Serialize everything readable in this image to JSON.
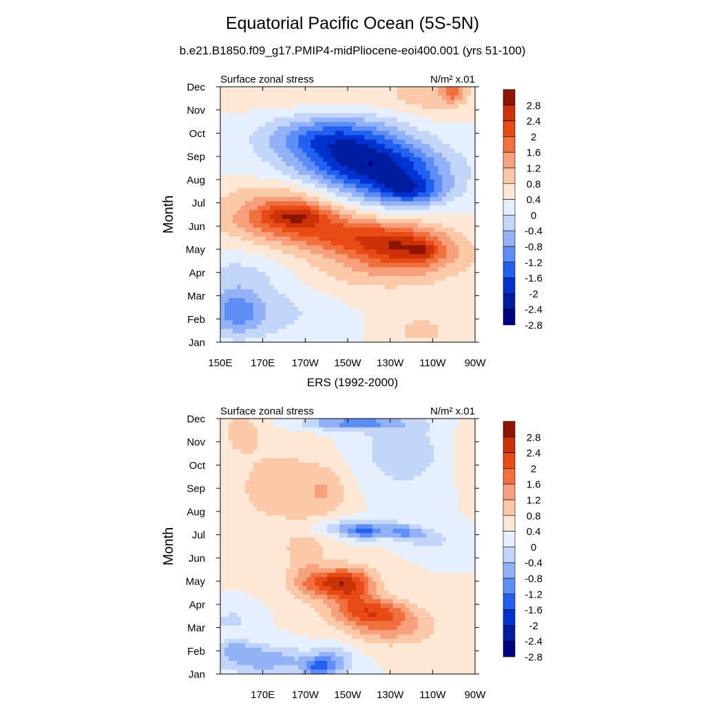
{
  "figure": {
    "title": "Equatorial Pacific Ocean (5S-5N)",
    "subtitle": "b.e21.B1850.f09_g17.PMIP4-midPliocene-eoi400.001 (yrs 51-100)",
    "obs_title": "ERS (1992-2000)"
  },
  "chart_data": [
    {
      "type": "heatmap",
      "name": "model",
      "left_label": "Surface zonal stress",
      "right_label": "N/m² x.01",
      "ylabel": "Month",
      "months": [
        "Jan",
        "Feb",
        "Mar",
        "Apr",
        "May",
        "Jun",
        "Jul",
        "Aug",
        "Sep",
        "Oct",
        "Nov",
        "Dec"
      ],
      "x_ticks": [
        "150E",
        "170E",
        "170W",
        "150W",
        "130W",
        "110W",
        "90W"
      ],
      "xlim_deg_east": [
        150,
        270
      ],
      "levels": [
        -2.8,
        -2.4,
        -2,
        -1.6,
        -1.2,
        -0.8,
        -0.4,
        0,
        0.4,
        0.8,
        1.2,
        1.6,
        2,
        2.4,
        2.8
      ],
      "colorbar_labels": [
        "2.8",
        "2.4",
        "2",
        "1.6",
        "1.2",
        "0.8",
        "0.4",
        "0",
        "-0.4",
        "-0.8",
        "-1.2",
        "-1.6",
        "-2",
        "-2.4",
        "-2.8"
      ],
      "colors": [
        "#000080",
        "#001CA0",
        "#0032D2",
        "#2260F0",
        "#5E8EF5",
        "#93B1F6",
        "#C3D5F8",
        "#E6F0FC",
        "#FDE8D7",
        "#FBC8A8",
        "#F7A07E",
        "#F0703F",
        "#E84B16",
        "#CC3208",
        "#8E1404"
      ],
      "features": [
        {
          "lon": 157,
          "month": 1.3,
          "value": -1.25,
          "lon_radius": 13,
          "month_radius": 1.0
        },
        {
          "lon": 177,
          "month": 1.3,
          "value": -0.5,
          "lon_radius": 25,
          "month_radius": 1.3
        },
        {
          "lon": 245,
          "month": 0.5,
          "value": 0.55,
          "lon_radius": 15,
          "month_radius": 0.7
        },
        {
          "lon": 160,
          "month": 3.0,
          "value": -0.5,
          "lon_radius": 25,
          "month_radius": 0.9
        },
        {
          "lon": 220,
          "month": 3.3,
          "value": 0.6,
          "lon_radius": 42,
          "month_radius": 1.2
        },
        {
          "lon": 240,
          "month": 3.8,
          "value": 0.8,
          "lon_radius": 25,
          "month_radius": 1.0
        },
        {
          "lon": 246,
          "month": 3.9,
          "value": 0.6,
          "lon_radius": 6,
          "month_radius": 0.3
        },
        {
          "lon": 180,
          "month": 5.3,
          "value": 1.35,
          "lon_radius": 30,
          "month_radius": 0.9
        },
        {
          "lon": 210,
          "month": 4.6,
          "value": 1.25,
          "lon_radius": 30,
          "month_radius": 0.8
        },
        {
          "lon": 237,
          "month": 4.2,
          "value": 1.0,
          "lon_radius": 22,
          "month_radius": 0.8
        },
        {
          "lon": 185,
          "month": 5.5,
          "value": 1.1,
          "lon_radius": 16,
          "month_radius": 0.5
        },
        {
          "lon": 176,
          "month": 6.4,
          "value": 0.5,
          "lon_radius": 28,
          "month_radius": 0.6
        },
        {
          "lon": 222,
          "month": 7.4,
          "value": -1.0,
          "lon_radius": 30,
          "month_radius": 1.6
        },
        {
          "lon": 230,
          "month": 7.4,
          "value": -1.3,
          "lon_radius": 30,
          "month_radius": 1.0
        },
        {
          "lon": 240,
          "month": 6.5,
          "value": -1.35,
          "lon_radius": 17,
          "month_radius": 0.6
        },
        {
          "lon": 205,
          "month": 8.5,
          "value": -1.5,
          "lon_radius": 30,
          "month_radius": 1.2
        },
        {
          "lon": 195,
          "month": 8.9,
          "value": -0.5,
          "lon_radius": 30,
          "month_radius": 0.8
        },
        {
          "lon": 205,
          "month": 10.5,
          "value": 0.3,
          "lon_radius": 50,
          "month_radius": 0.7
        },
        {
          "lon": 250,
          "month": 10.8,
          "value": 0.6,
          "lon_radius": 18,
          "month_radius": 1.0
        },
        {
          "lon": 260,
          "month": 10.8,
          "value": 1.0,
          "lon_radius": 5,
          "month_radius": 0.5
        }
      ]
    },
    {
      "type": "heatmap",
      "name": "ers",
      "left_label": "Surface zonal stress",
      "right_label": "N/m² x.01",
      "ylabel": "Month",
      "months": [
        "Jan",
        "Feb",
        "Mar",
        "Apr",
        "May",
        "Jun",
        "Jul",
        "Aug",
        "Sep",
        "Oct",
        "Nov",
        "Dec"
      ],
      "x_ticks": [
        "170E",
        "170W",
        "150W",
        "130W",
        "110W",
        "90W"
      ],
      "x_tick_values_deg_east": [
        170,
        190,
        210,
        230,
        250,
        270
      ],
      "xlim_deg_east": [
        150,
        270
      ],
      "levels": [
        -2.8,
        -2.4,
        -2,
        -1.6,
        -1.2,
        -0.8,
        -0.4,
        0,
        0.4,
        0.8,
        1.2,
        1.6,
        2,
        2.4,
        2.8
      ],
      "colorbar_labels": [
        "2.8",
        "2.4",
        "2",
        "1.6",
        "1.2",
        "0.8",
        "0.4",
        "0",
        "-0.4",
        "-0.8",
        "-1.2",
        "-1.6",
        "-2",
        "-2.4",
        "-2.8"
      ],
      "colors": [
        "#000080",
        "#001CA0",
        "#0032D2",
        "#2260F0",
        "#5E8EF5",
        "#93B1F6",
        "#C3D5F8",
        "#E6F0FC",
        "#FDE8D7",
        "#FBC8A8",
        "#F7A07E",
        "#F0703F",
        "#E84B16",
        "#CC3208",
        "#8E1404"
      ],
      "features": [
        {
          "lon": 170,
          "month": 0.6,
          "value": -1.1,
          "lon_radius": 22,
          "month_radius": 0.6
        },
        {
          "lon": 196,
          "month": 0.3,
          "value": -1.3,
          "lon_radius": 8,
          "month_radius": 0.4
        },
        {
          "lon": 204,
          "month": 0.6,
          "value": -0.8,
          "lon_radius": 10,
          "month_radius": 0.7
        },
        {
          "lon": 157,
          "month": 1.1,
          "value": -0.7,
          "lon_radius": 10,
          "month_radius": 0.4
        },
        {
          "lon": 155,
          "month": 2.3,
          "value": -0.5,
          "lon_radius": 10,
          "month_radius": 0.6
        },
        {
          "lon": 220,
          "month": 2.7,
          "value": 1.5,
          "lon_radius": 18,
          "month_radius": 0.6
        },
        {
          "lon": 230,
          "month": 2.0,
          "value": 1.0,
          "lon_radius": 22,
          "month_radius": 0.8
        },
        {
          "lon": 212,
          "month": 3.8,
          "value": 1.5,
          "lon_radius": 12,
          "month_radius": 0.8
        },
        {
          "lon": 202,
          "month": 4.0,
          "value": 1.0,
          "lon_radius": 14,
          "month_radius": 0.6
        },
        {
          "lon": 196,
          "month": 3.7,
          "value": 0.5,
          "lon_radius": 15,
          "month_radius": 0.6
        },
        {
          "lon": 190,
          "month": 5.0,
          "value": 0.6,
          "lon_radius": 10,
          "month_radius": 1.5
        },
        {
          "lon": 210,
          "month": 6.3,
          "value": -0.9,
          "lon_radius": 25,
          "month_radius": 0.4
        },
        {
          "lon": 218,
          "month": 6.1,
          "value": -1.1,
          "lon_radius": 8,
          "month_radius": 0.3
        },
        {
          "lon": 236,
          "month": 6.1,
          "value": -1.1,
          "lon_radius": 8,
          "month_radius": 0.3
        },
        {
          "lon": 248,
          "month": 5.8,
          "value": -0.7,
          "lon_radius": 10,
          "month_radius": 0.4
        },
        {
          "lon": 180,
          "month": 8.0,
          "value": 0.6,
          "lon_radius": 28,
          "month_radius": 2.0
        },
        {
          "lon": 200,
          "month": 7.9,
          "value": 0.5,
          "lon_radius": 10,
          "month_radius": 1.0
        },
        {
          "lon": 160,
          "month": 10.5,
          "value": 0.5,
          "lon_radius": 10,
          "month_radius": 1.0
        },
        {
          "lon": 235,
          "month": 9.5,
          "value": -0.6,
          "lon_radius": 25,
          "month_radius": 1.8
        },
        {
          "lon": 212,
          "month": 10.8,
          "value": -1.3,
          "lon_radius": 25,
          "month_radius": 0.3
        },
        {
          "lon": 265,
          "month": 9.5,
          "value": 0.3,
          "lon_radius": 8,
          "month_radius": 1.6
        }
      ]
    }
  ]
}
